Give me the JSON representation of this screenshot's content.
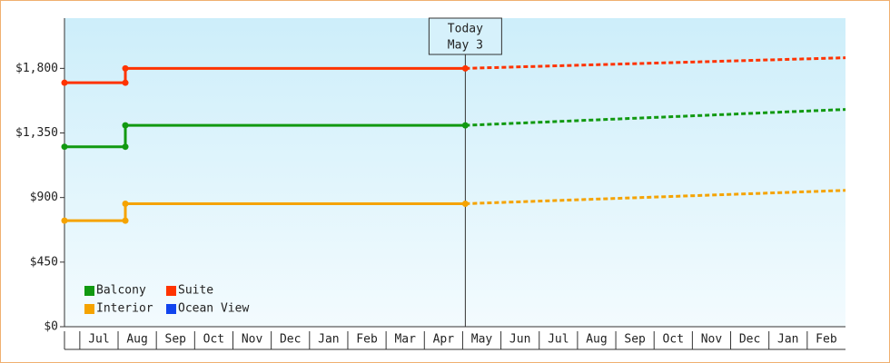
{
  "chart_data": {
    "type": "line",
    "categories": [
      "Jul",
      "Aug",
      "Sep",
      "Oct",
      "Nov",
      "Dec",
      "Jan",
      "Feb",
      "Mar",
      "Apr",
      "May",
      "Jun",
      "Jul",
      "Aug",
      "Sep",
      "Oct",
      "Nov",
      "Dec",
      "Jan",
      "Feb"
    ],
    "xlim": [
      -0.4,
      20
    ],
    "ylim": [
      0,
      2150
    ],
    "yticks": [
      {
        "value": 0,
        "label": "$0"
      },
      {
        "value": 450,
        "label": "$450"
      },
      {
        "value": 900,
        "label": "$900"
      },
      {
        "value": 1350,
        "label": "$1,350"
      },
      {
        "value": 1800,
        "label": "$1,800"
      }
    ],
    "today": {
      "x": 10.07,
      "title": "Today",
      "date": "May 3"
    },
    "series": [
      {
        "name": "Balcony",
        "color": "#119911",
        "x": [
          -0.4,
          1.19,
          1.19,
          10.07
        ],
        "values": [
          1254,
          1254,
          1403,
          1403
        ],
        "forecast_x": [
          10.07,
          20
        ],
        "forecast": [
          1403,
          1514
        ]
      },
      {
        "name": "Suite",
        "color": "#ff3300",
        "x": [
          -0.4,
          1.19,
          1.19,
          10.07
        ],
        "values": [
          1700,
          1700,
          1800,
          1800
        ],
        "forecast_x": [
          10.07,
          20
        ],
        "forecast": [
          1800,
          1874
        ]
      },
      {
        "name": "Interior",
        "color": "#f5a300",
        "x": [
          -0.4,
          1.19,
          1.19,
          10.07
        ],
        "values": [
          739,
          739,
          857,
          857
        ],
        "forecast_x": [
          10.07,
          20
        ],
        "forecast": [
          857,
          950
        ]
      },
      {
        "name": "Ocean View",
        "color": "#1144ee",
        "x": [],
        "values": [],
        "forecast_x": [],
        "forecast": []
      }
    ]
  }
}
